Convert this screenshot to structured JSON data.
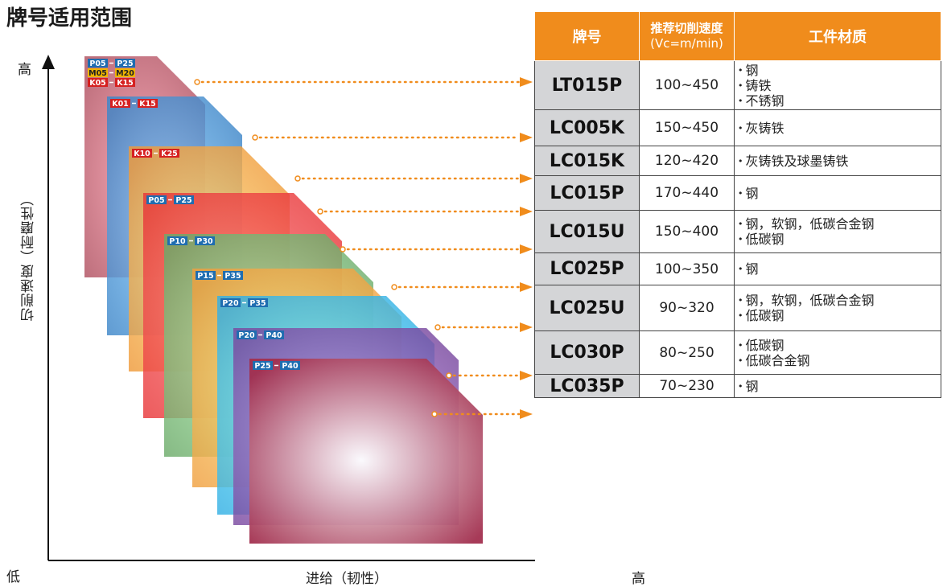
{
  "title": "牌号适用范围",
  "axes": {
    "y_high": "高",
    "y_label": "切削速度（耐磨性）",
    "x_low": "低",
    "x_label": "进给（韧性）",
    "x_high": "高"
  },
  "table": {
    "headers": {
      "grade": "牌号",
      "speed_line1": "推荐切削速度",
      "speed_line2": "(Vc=m/min)",
      "material": "工件材质"
    },
    "rows": [
      {
        "grade": "LT015P",
        "speed": "100~450",
        "materials": [
          "钢",
          "铸铁",
          "不锈钢"
        ]
      },
      {
        "grade": "LC005K",
        "speed": "150~450",
        "materials": [
          "灰铸铁"
        ]
      },
      {
        "grade": "LC015K",
        "speed": "120~420",
        "materials": [
          "灰铸铁及球墨铸铁"
        ]
      },
      {
        "grade": "LC015P",
        "speed": "170~440",
        "materials": [
          "钢"
        ]
      },
      {
        "grade": "LC015U",
        "speed": "150~400",
        "materials": [
          "钢，软钢，低碳合金钢",
          "低碳钢"
        ]
      },
      {
        "grade": "LC025P",
        "speed": "100~350",
        "materials": [
          "钢"
        ]
      },
      {
        "grade": "LC025U",
        "speed": "90~320",
        "materials": [
          "钢，软钢，低碳合金钢",
          "低碳钢"
        ]
      },
      {
        "grade": "LC030P",
        "speed": "80~250",
        "materials": [
          "低碳钢",
          "低碳合金钢"
        ]
      },
      {
        "grade": "LC035P",
        "speed": "70~230",
        "materials": [
          "钢"
        ]
      }
    ]
  },
  "cards": [
    {
      "grade": "LT015P",
      "color": "#b05060",
      "tags": [
        {
          "from": "P05",
          "to": "P25",
          "bg": "#1f6db0",
          "fg": "#ffffff"
        },
        {
          "from": "M05",
          "to": "M20",
          "bg": "#f0b400",
          "fg": "#222222"
        },
        {
          "from": "K05",
          "to": "K15",
          "bg": "#d62020",
          "fg": "#ffffff"
        }
      ]
    },
    {
      "grade": "LC005K",
      "color": "#3e86c8",
      "tags": [
        {
          "from": "K01",
          "to": "K15",
          "bg": "#d62020",
          "fg": "#ffffff"
        }
      ]
    },
    {
      "grade": "LC015K",
      "color": "#ef9a3a",
      "tags": [
        {
          "from": "K10",
          "to": "K25",
          "bg": "#d62020",
          "fg": "#ffffff"
        }
      ]
    },
    {
      "grade": "LC015P",
      "color": "#e8383a",
      "tags": [
        {
          "from": "P05",
          "to": "P25",
          "bg": "#1f6db0",
          "fg": "#ffffff"
        }
      ]
    },
    {
      "grade": "LC015U",
      "color": "#6cab6a",
      "tags": [
        {
          "from": "P10",
          "to": "P30",
          "bg": "#1f6db0",
          "fg": "#ffffff"
        }
      ]
    },
    {
      "grade": "LC025P",
      "color": "#f0a040",
      "tags": [
        {
          "from": "P15",
          "to": "P35",
          "bg": "#1f6db0",
          "fg": "#ffffff"
        }
      ]
    },
    {
      "grade": "LC025U",
      "color": "#34b0e4",
      "tags": [
        {
          "from": "P20",
          "to": "P35",
          "bg": "#1f6db0",
          "fg": "#ffffff"
        }
      ]
    },
    {
      "grade": "LC030P",
      "color": "#7a4aa0",
      "tags": [
        {
          "from": "P20",
          "to": "P40",
          "bg": "#1f6db0",
          "fg": "#ffffff"
        }
      ]
    },
    {
      "grade": "LC035P",
      "color": "#a2304f",
      "tags": [
        {
          "from": "P25",
          "to": "P40",
          "bg": "#1f6db0",
          "fg": "#ffffff"
        }
      ]
    }
  ],
  "colors": {
    "connector": "#f08c1c",
    "axis": "#111111",
    "header_bg": "#f08c1c",
    "grade_cell_bg": "#d4d5d7"
  }
}
